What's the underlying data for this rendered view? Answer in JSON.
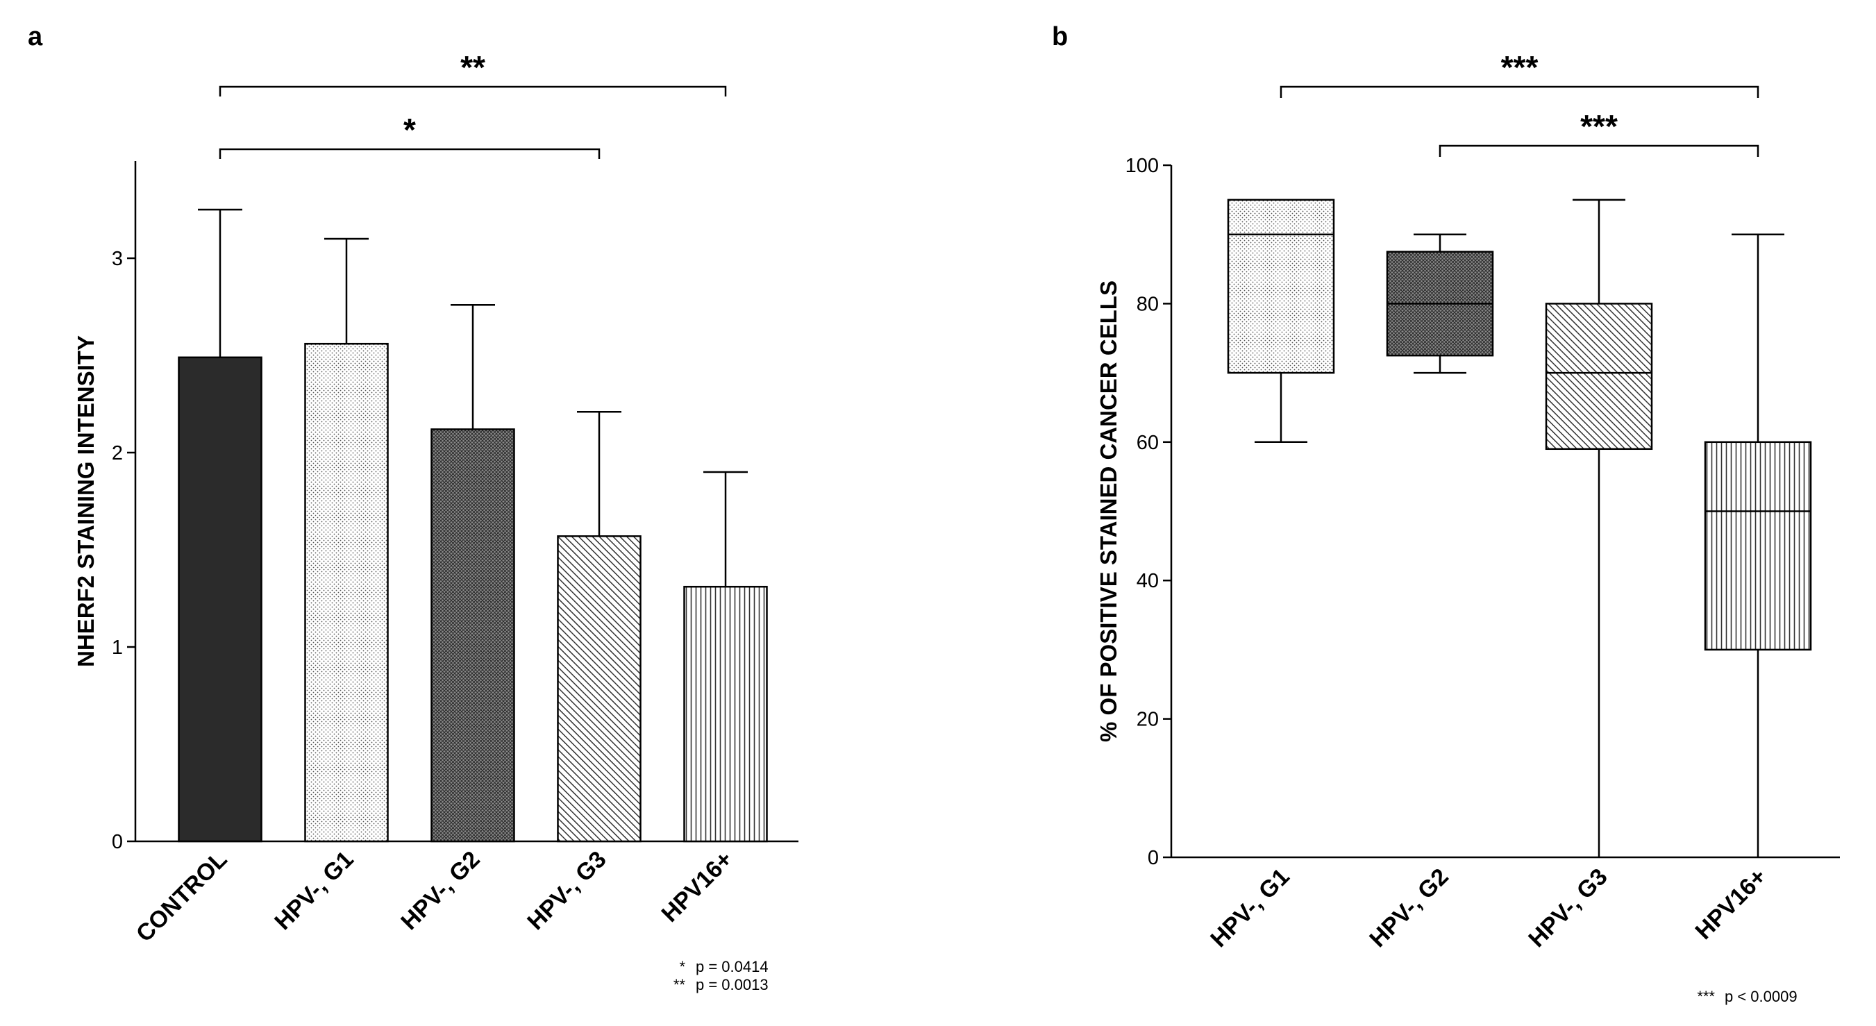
{
  "chart_data": [
    {
      "panel": "a",
      "type": "bar",
      "title": "",
      "xlabel": "",
      "ylabel": "NHERF2 STAINING INTENSITY",
      "ylim": [
        0,
        3.5
      ],
      "yticks": [
        0,
        1,
        2,
        3
      ],
      "categories": [
        "CONTROL",
        "HPV-, G1",
        "HPV-, G2",
        "HPV-, G3",
        "HPV16+"
      ],
      "values": [
        2.49,
        2.56,
        2.12,
        1.57,
        1.31
      ],
      "error_upper": [
        3.25,
        3.1,
        2.76,
        2.21,
        1.9
      ],
      "fills": [
        "solid-dark",
        "fine-dots",
        "dense-crosshatch",
        "diagonal-lines",
        "vertical-lines"
      ],
      "significance": [
        {
          "from": "CONTROL",
          "to": "HPV16+",
          "stars": "**"
        },
        {
          "from": "CONTROL",
          "to": "HPV-, G3",
          "stars": "*"
        }
      ],
      "notes": [
        {
          "mark": "*",
          "text": "p = 0.0414"
        },
        {
          "mark": "**",
          "text": "p = 0.0013"
        }
      ]
    },
    {
      "panel": "b",
      "type": "box",
      "title": "",
      "xlabel": "",
      "ylabel": "% OF POSITIVE STAINED CANCER CELLS",
      "ylim": [
        0,
        100
      ],
      "yticks": [
        0,
        20,
        40,
        60,
        80,
        100
      ],
      "categories": [
        "HPV-, G1",
        "HPV-, G2",
        "HPV-, G3",
        "HPV16+"
      ],
      "boxes": [
        {
          "min": 60,
          "q1": 70,
          "median": 90,
          "q3": 95,
          "max": 95
        },
        {
          "min": 70,
          "q1": 72.5,
          "median": 80,
          "q3": 87.5,
          "max": 90
        },
        {
          "min": 0,
          "q1": 59,
          "median": 70,
          "q3": 80,
          "max": 95
        },
        {
          "min": 0,
          "q1": 30,
          "median": 50,
          "q3": 60,
          "max": 90
        }
      ],
      "fills": [
        "fine-dots",
        "dense-crosshatch",
        "diagonal-lines",
        "vertical-lines"
      ],
      "significance": [
        {
          "from": "HPV-, G1",
          "to": "HPV16+",
          "stars": "***"
        },
        {
          "from": "HPV-, G2",
          "to": "HPV16+",
          "stars": "***"
        }
      ],
      "notes": [
        {
          "mark": "***",
          "text": "p < 0.0009"
        }
      ]
    }
  ]
}
